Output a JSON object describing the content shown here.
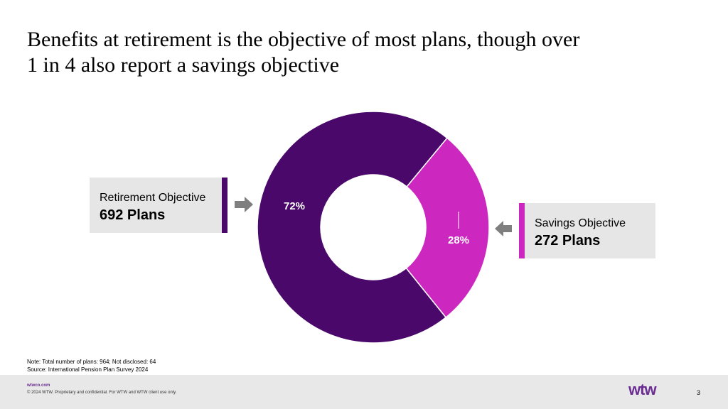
{
  "title": {
    "line1": "Benefits at retirement is the objective of most plans, though over",
    "line2": "1 in 4 also report a savings objective"
  },
  "chart_data": {
    "type": "pie",
    "variant": "donut",
    "categories": [
      "Retirement Objective",
      "Savings Objective"
    ],
    "values": [
      692,
      272
    ],
    "percent_labels": [
      "72%",
      "28%"
    ],
    "colors": [
      "#4a086a",
      "#cc27bf"
    ],
    "title": "",
    "legend": "callouts left and right"
  },
  "callouts": {
    "retirement": {
      "label": "Retirement Objective",
      "value": "692 Plans"
    },
    "savings": {
      "label": "Savings Objective",
      "value": "272 Plans"
    }
  },
  "notes": {
    "note": "Note: Total number of plans: 964; Not disclosed: 64",
    "source": "Source: International Pension Plan Survey 2024"
  },
  "footer": {
    "site": "wtwco.com",
    "copyright": "© 2024 WTW. Proprietary and confidential. For WTW and WTW client use only.",
    "logo": "wtw",
    "page": "3"
  },
  "colors": {
    "arrow": "#7f7f7f",
    "callout_bg": "#e6e6e6",
    "brand": "#6a2c91"
  }
}
